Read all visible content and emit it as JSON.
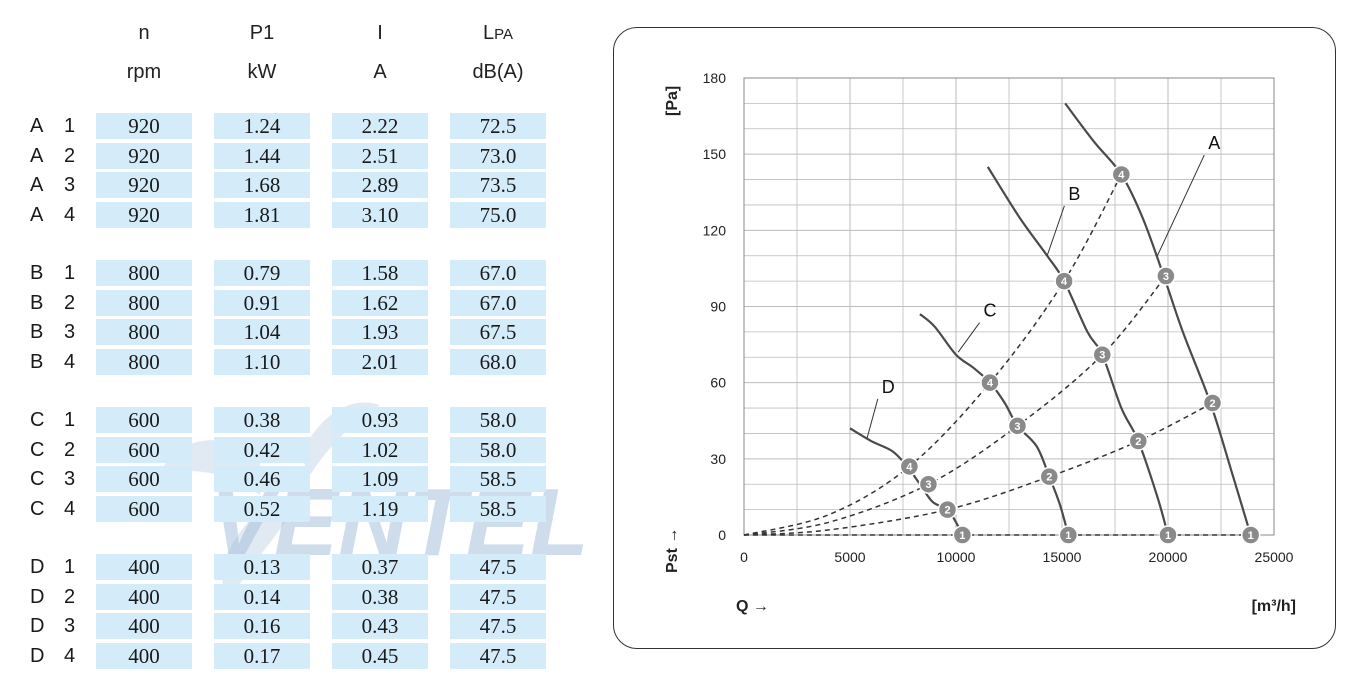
{
  "table": {
    "headers": [
      {
        "symbol": "n",
        "unit": "rpm"
      },
      {
        "symbol": "P1",
        "unit": "kW"
      },
      {
        "symbol": "I",
        "unit": "A"
      },
      {
        "symbol": "L",
        "sub": "PA",
        "unit": "dB(A)"
      }
    ],
    "rows": [
      {
        "group": "A",
        "num": "1",
        "n": "920",
        "p1": "1.24",
        "i": "2.22",
        "lpa": "72.5"
      },
      {
        "group": "A",
        "num": "2",
        "n": "920",
        "p1": "1.44",
        "i": "2.51",
        "lpa": "73.0"
      },
      {
        "group": "A",
        "num": "3",
        "n": "920",
        "p1": "1.68",
        "i": "2.89",
        "lpa": "73.5"
      },
      {
        "group": "A",
        "num": "4",
        "n": "920",
        "p1": "1.81",
        "i": "3.10",
        "lpa": "75.0"
      },
      {
        "group": "B",
        "num": "1",
        "n": "800",
        "p1": "0.79",
        "i": "1.58",
        "lpa": "67.0"
      },
      {
        "group": "B",
        "num": "2",
        "n": "800",
        "p1": "0.91",
        "i": "1.62",
        "lpa": "67.0"
      },
      {
        "group": "B",
        "num": "3",
        "n": "800",
        "p1": "1.04",
        "i": "1.93",
        "lpa": "67.5"
      },
      {
        "group": "B",
        "num": "4",
        "n": "800",
        "p1": "1.10",
        "i": "2.01",
        "lpa": "68.0"
      },
      {
        "group": "C",
        "num": "1",
        "n": "600",
        "p1": "0.38",
        "i": "0.93",
        "lpa": "58.0"
      },
      {
        "group": "C",
        "num": "2",
        "n": "600",
        "p1": "0.42",
        "i": "1.02",
        "lpa": "58.0"
      },
      {
        "group": "C",
        "num": "3",
        "n": "600",
        "p1": "0.46",
        "i": "1.09",
        "lpa": "58.5"
      },
      {
        "group": "C",
        "num": "4",
        "n": "600",
        "p1": "0.52",
        "i": "1.19",
        "lpa": "58.5"
      },
      {
        "group": "D",
        "num": "1",
        "n": "400",
        "p1": "0.13",
        "i": "0.37",
        "lpa": "47.5"
      },
      {
        "group": "D",
        "num": "2",
        "n": "400",
        "p1": "0.14",
        "i": "0.38",
        "lpa": "47.5"
      },
      {
        "group": "D",
        "num": "3",
        "n": "400",
        "p1": "0.16",
        "i": "0.43",
        "lpa": "47.5"
      },
      {
        "group": "D",
        "num": "4",
        "n": "400",
        "p1": "0.17",
        "i": "0.45",
        "lpa": "47.5"
      }
    ]
  },
  "watermark": {
    "text": "VENTEL",
    "color": "#9fb8d6"
  },
  "chart_data": {
    "type": "line",
    "xlabel": "Q →",
    "xunit": "[m³/h]",
    "ylabel": "Pst →",
    "yunit": "[Pa]",
    "xlim": [
      0,
      25000
    ],
    "ylim": [
      0,
      180
    ],
    "xticks": [
      "0",
      "5000",
      "10000",
      "15000",
      "20000",
      "25000"
    ],
    "yticks": [
      "0",
      "30",
      "60",
      "90",
      "120",
      "150",
      "180"
    ],
    "grid": true,
    "series": [
      {
        "name": "A",
        "points": [
          [
            15150,
            170
          ],
          [
            16500,
            155
          ],
          [
            17800,
            142
          ],
          [
            18800,
            125
          ],
          [
            19800,
            102
          ],
          [
            20700,
            80
          ],
          [
            22000,
            52
          ],
          [
            23000,
            25
          ],
          [
            23900,
            0
          ]
        ],
        "markers": [
          {
            "label": "1",
            "x": 23900,
            "y": 0
          },
          {
            "label": "2",
            "x": 22100,
            "y": 52
          },
          {
            "label": "3",
            "x": 19900,
            "y": 102
          },
          {
            "label": "4",
            "x": 17800,
            "y": 142
          }
        ]
      },
      {
        "name": "B",
        "points": [
          [
            11500,
            145
          ],
          [
            13000,
            125
          ],
          [
            14300,
            110
          ],
          [
            15100,
            100
          ],
          [
            16200,
            80
          ],
          [
            16900,
            71
          ],
          [
            17800,
            50
          ],
          [
            18600,
            37
          ],
          [
            19500,
            15
          ],
          [
            20000,
            0
          ]
        ],
        "markers": [
          {
            "label": "1",
            "x": 20000,
            "y": 0
          },
          {
            "label": "2",
            "x": 18600,
            "y": 37
          },
          {
            "label": "3",
            "x": 16900,
            "y": 71
          },
          {
            "label": "4",
            "x": 15100,
            "y": 100
          }
        ]
      },
      {
        "name": "C",
        "points": [
          [
            8300,
            87
          ],
          [
            9000,
            82
          ],
          [
            10000,
            71
          ],
          [
            10800,
            66
          ],
          [
            11600,
            60
          ],
          [
            12300,
            52
          ],
          [
            12900,
            43
          ],
          [
            13800,
            35
          ],
          [
            14400,
            23
          ],
          [
            14900,
            12
          ],
          [
            15300,
            0
          ]
        ],
        "markers": [
          {
            "label": "1",
            "x": 15300,
            "y": 0
          },
          {
            "label": "2",
            "x": 14400,
            "y": 23
          },
          {
            "label": "3",
            "x": 12900,
            "y": 43
          },
          {
            "label": "4",
            "x": 11600,
            "y": 60
          }
        ]
      },
      {
        "name": "D",
        "points": [
          [
            5000,
            42
          ],
          [
            6000,
            37
          ],
          [
            7000,
            33
          ],
          [
            7700,
            27
          ],
          [
            8300,
            20
          ],
          [
            8900,
            13
          ],
          [
            9600,
            10
          ],
          [
            10000,
            5
          ],
          [
            10300,
            0
          ]
        ],
        "markers": [
          {
            "label": "1",
            "x": 10300,
            "y": 0
          },
          {
            "label": "2",
            "x": 9600,
            "y": 10
          },
          {
            "label": "3",
            "x": 8700,
            "y": 20
          },
          {
            "label": "4",
            "x": 7800,
            "y": 27
          }
        ]
      }
    ],
    "system_curves": [
      {
        "name": "1",
        "points": [
          [
            0,
            0
          ],
          [
            10300,
            0
          ],
          [
            15300,
            0
          ],
          [
            20000,
            0
          ],
          [
            23900,
            0
          ]
        ]
      },
      {
        "name": "2",
        "points": [
          [
            0,
            0
          ],
          [
            4000,
            2
          ],
          [
            9600,
            10
          ],
          [
            14400,
            23
          ],
          [
            18600,
            37
          ],
          [
            22100,
            52
          ]
        ]
      },
      {
        "name": "3",
        "points": [
          [
            0,
            0
          ],
          [
            4000,
            5
          ],
          [
            8700,
            20
          ],
          [
            12900,
            43
          ],
          [
            16900,
            71
          ],
          [
            19900,
            102
          ]
        ]
      },
      {
        "name": "4",
        "points": [
          [
            0,
            0
          ],
          [
            4000,
            8
          ],
          [
            7800,
            27
          ],
          [
            11600,
            60
          ],
          [
            15100,
            100
          ],
          [
            17800,
            142
          ]
        ]
      }
    ],
    "curve_label_positions": {
      "A": [
        21900,
        152
      ],
      "B": [
        15300,
        132
      ],
      "C": [
        11300,
        86
      ],
      "D": [
        6500,
        56
      ]
    }
  }
}
